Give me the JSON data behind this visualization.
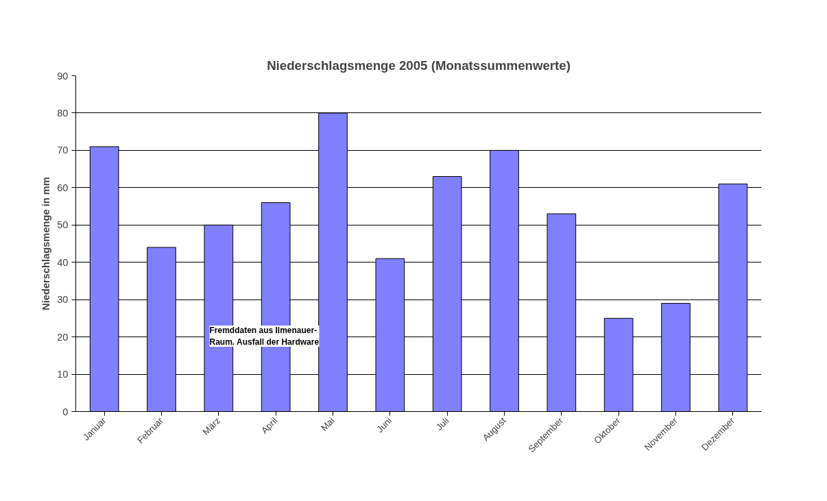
{
  "chart_data": {
    "type": "bar",
    "title": "Niederschlagsmenge 2005 (Monatssummenwerte)",
    "ylabel": "Niederschlagsmenge in mm",
    "categories": [
      "Januar",
      "Februar",
      "März",
      "April",
      "Mai",
      "Juni",
      "Juli",
      "August",
      "September",
      "Oktober",
      "November",
      "Dezember"
    ],
    "values": [
      71,
      44,
      50,
      56,
      80,
      41,
      63,
      70,
      53,
      25,
      29,
      61
    ],
    "color": "#8080ff",
    "ylim": [
      0,
      90
    ],
    "yticks": [
      0,
      10,
      20,
      30,
      40,
      50,
      60,
      70,
      80,
      90
    ],
    "grid": "y",
    "annotations": [
      "Fremddaten aus Ilmenauer-\nRaum. Ausfall der Hardware"
    ]
  }
}
